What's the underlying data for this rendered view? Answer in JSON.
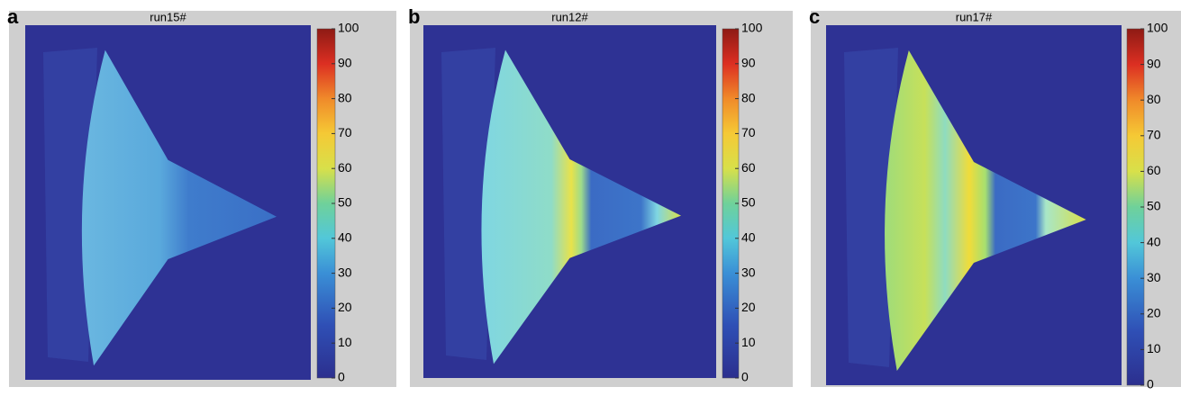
{
  "chart_data": [
    {
      "type": "heatmap",
      "panel_label": "a",
      "title": "run15#",
      "colorbar": {
        "lim": [
          0,
          100
        ],
        "ticks": [
          0,
          10,
          20,
          30,
          40,
          50,
          60,
          70,
          80,
          90,
          100
        ]
      }
    },
    {
      "type": "heatmap",
      "panel_label": "b",
      "title": "run12#",
      "colorbar": {
        "lim": [
          0,
          100
        ],
        "ticks": [
          0,
          10,
          20,
          30,
          40,
          50,
          60,
          70,
          80,
          90,
          100
        ]
      }
    },
    {
      "type": "heatmap",
      "panel_label": "c",
      "title": "run17#",
      "colorbar": {
        "lim": [
          0,
          100
        ],
        "ticks": [
          0,
          10,
          20,
          30,
          40,
          50,
          60,
          70,
          80,
          90,
          100
        ]
      }
    }
  ]
}
